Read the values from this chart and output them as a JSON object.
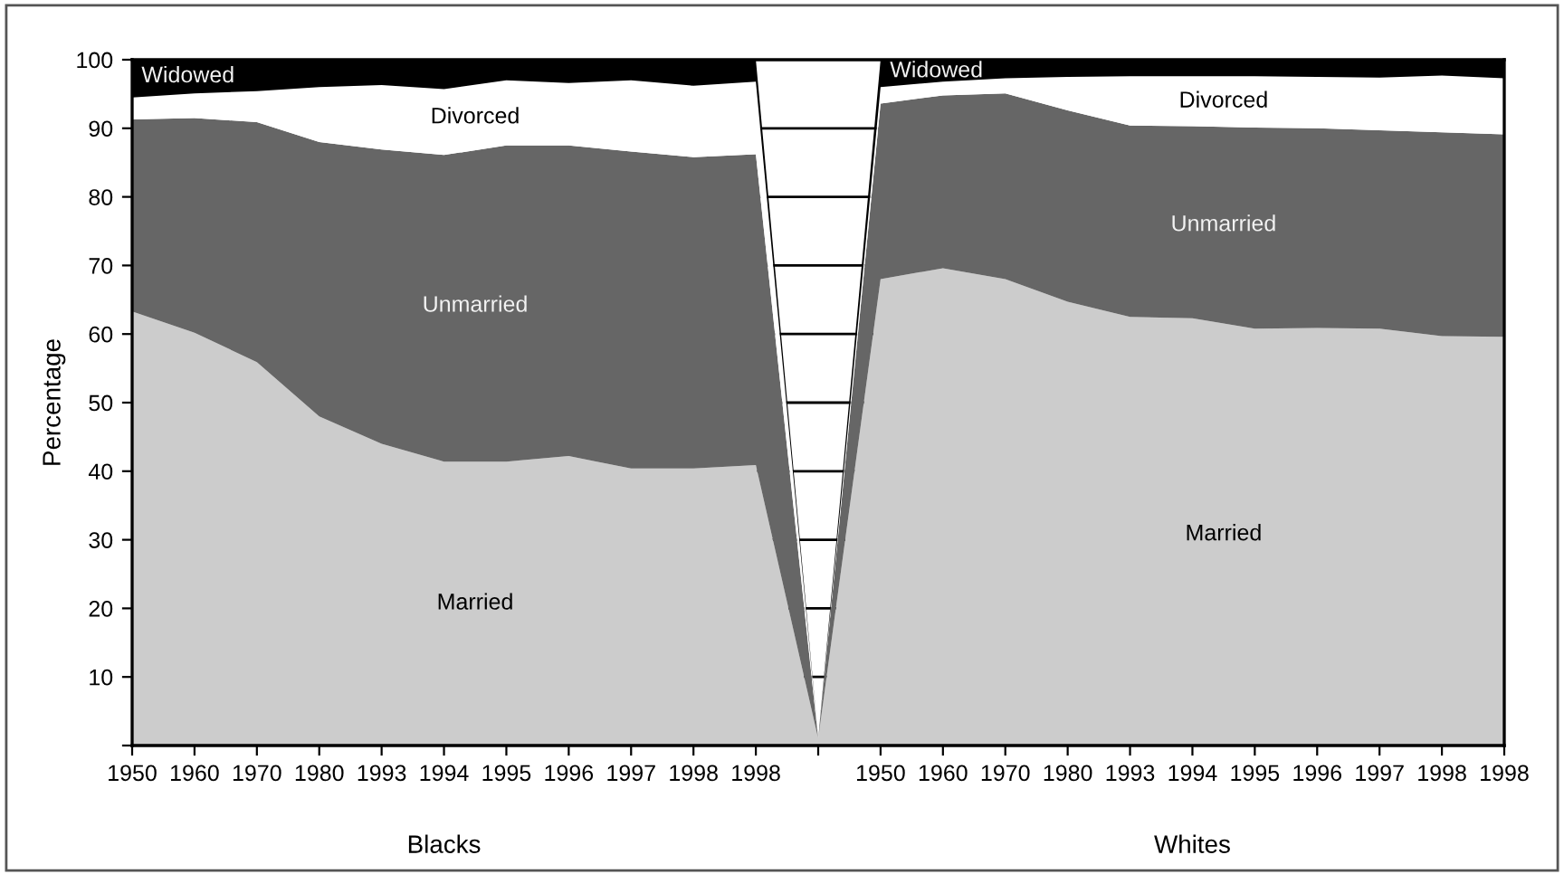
{
  "chart_data": {
    "type": "area",
    "stacked": true,
    "ylabel": "Percentage",
    "categories": [
      "1950",
      "1960",
      "1970",
      "1980",
      "1993",
      "1994",
      "1995",
      "1996",
      "1997",
      "1998",
      "1998",
      null,
      "1950",
      "1960",
      "1970",
      "1980",
      "1993",
      "1994",
      "1995",
      "1996",
      "1997",
      "1998",
      "1998"
    ],
    "series": [
      {
        "name": "Married",
        "color": "#cccccc",
        "values": [
          63.3,
          60.2,
          55.9,
          48.0,
          44.0,
          41.4,
          41.4,
          42.2,
          40.4,
          40.4,
          40.9,
          1,
          68.0,
          69.6,
          68.0,
          64.7,
          62.5,
          62.3,
          60.8,
          60.9,
          60.8,
          59.7,
          59.6
        ]
      },
      {
        "name": "Unmarried",
        "color": "#666666",
        "values": [
          28.0,
          31.3,
          35.0,
          40.0,
          42.9,
          44.7,
          46.1,
          45.3,
          46.2,
          45.4,
          45.3,
          0,
          25.6,
          25.2,
          27.1,
          27.9,
          27.9,
          28.0,
          29.3,
          29.1,
          28.9,
          29.7,
          29.5
        ]
      },
      {
        "name": "Divorced",
        "color": "#ffffff",
        "values": [
          3.2,
          3.6,
          4.5,
          8.0,
          9.4,
          9.6,
          9.5,
          9.1,
          10.4,
          10.4,
          10.6,
          0,
          2.4,
          2.0,
          2.2,
          4.9,
          7.2,
          7.3,
          7.5,
          7.5,
          7.7,
          8.3,
          8.2
        ]
      },
      {
        "name": "Widowed",
        "color": "#000000",
        "values": [
          5.5,
          4.9,
          4.6,
          4.0,
          3.7,
          4.3,
          3.0,
          3.4,
          3.0,
          3.8,
          3.2,
          0,
          4.0,
          3.2,
          2.7,
          2.5,
          2.4,
          2.4,
          2.4,
          2.5,
          2.6,
          2.3,
          2.7
        ]
      }
    ],
    "ylim": [
      0,
      100
    ],
    "yticks": [
      {
        "value": 0,
        "label": null
      },
      10,
      20,
      30,
      40,
      50,
      60,
      70,
      80,
      90,
      100
    ],
    "annotations": [
      "Blacks",
      "Whites"
    ]
  }
}
